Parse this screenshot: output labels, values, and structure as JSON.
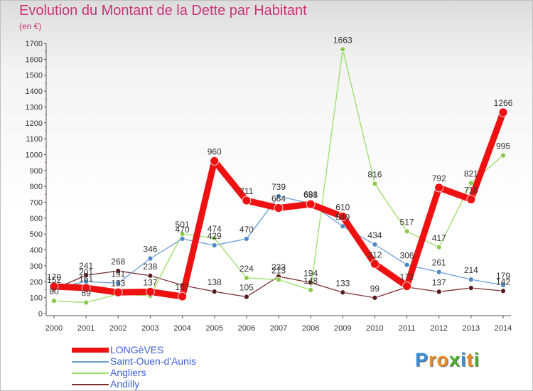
{
  "title": "Evolution du Montant de la Dette par Habitant",
  "subtitle": "(en €)",
  "brand": {
    "text": "Proxiti",
    "letters": [
      {
        "ch": "P",
        "color": "#3a8fd8"
      },
      {
        "ch": "r",
        "color": "#f08a1c"
      },
      {
        "ch": "o",
        "color": "#f08a1c"
      },
      {
        "ch": "x",
        "color": "#4caf2a"
      },
      {
        "ch": "i",
        "color": "#3a8fd8"
      },
      {
        "ch": "t",
        "color": "#f08a1c"
      },
      {
        "ch": "i",
        "color": "#4caf2a"
      }
    ]
  },
  "chart_data": {
    "type": "line",
    "title": "Evolution du Montant de la Dette par Habitant",
    "subtitle": "(en €)",
    "x": [
      2000,
      2001,
      2002,
      2003,
      2004,
      2005,
      2006,
      2007,
      2008,
      2009,
      2010,
      2011,
      2012,
      2013,
      2014
    ],
    "ylim": [
      0,
      1700
    ],
    "yticks": [
      0,
      100,
      200,
      300,
      400,
      500,
      600,
      700,
      800,
      900,
      1000,
      1100,
      1200,
      1300,
      1400,
      1500,
      1600,
      1700
    ],
    "grid": false,
    "legend_position": "bottom-left",
    "series": [
      {
        "name": "LONGèVES",
        "color": "#ee1111",
        "values": [
          170,
          161,
          133,
          137,
          107,
          960,
          711,
          664,
          688,
          610,
          312,
          172,
          792,
          718,
          1266
        ]
      },
      {
        "name": "Saint-Ouen-d'Aunis",
        "color": "#6a9fd4",
        "values": [
          160,
          201,
          191,
          346,
          470,
          429,
          470,
          739,
          691,
          549,
          434,
          306,
          261,
          214,
          179
        ]
      },
      {
        "name": "Angliers",
        "color": "#99dd66",
        "values": [
          80,
          69,
          122,
          111,
          501,
          474,
          224,
          213,
          148,
          1663,
          816,
          517,
          417,
          821,
          995
        ]
      },
      {
        "name": "Andilly",
        "color": "#7a2e2e",
        "values": [
          152,
          241,
          268,
          238,
          178,
          138,
          105,
          233,
          194,
          133,
          99,
          166,
          137,
          161,
          142
        ]
      }
    ],
    "data_labels": [
      {
        "series": 0,
        "shown": [
          1,
          1,
          1,
          1,
          1,
          1,
          1,
          1,
          1,
          1,
          1,
          1,
          1,
          1,
          1
        ]
      },
      {
        "series": 1,
        "shown": [
          0,
          1,
          1,
          1,
          1,
          1,
          1,
          1,
          1,
          1,
          1,
          1,
          1,
          1,
          1
        ]
      },
      {
        "series": 2,
        "shown": [
          1,
          1,
          0,
          0,
          1,
          1,
          1,
          1,
          1,
          1,
          1,
          1,
          1,
          1,
          1
        ]
      },
      {
        "series": 3,
        "shown": [
          1,
          1,
          1,
          1,
          0,
          1,
          1,
          1,
          1,
          1,
          1,
          0,
          1,
          0,
          1
        ]
      }
    ]
  }
}
